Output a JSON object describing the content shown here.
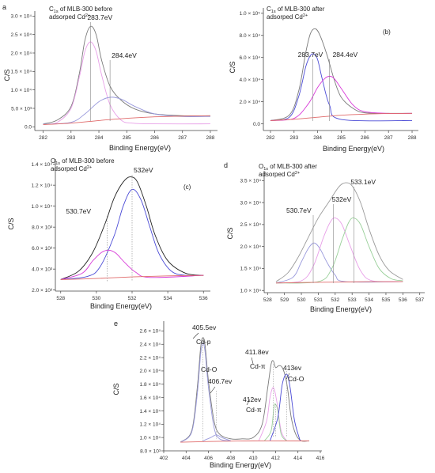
{
  "colors": {
    "envelope": "#7a7a7a",
    "background": "#e06a6a",
    "blue": "#4a4ad6",
    "magenta": "#d83ad8",
    "green": "#4aa84a",
    "violet": "#9a9adc",
    "pink": "#e8a0e8",
    "lightgreen": "#9ad09a",
    "black": "#222222"
  },
  "chart_data": [
    {
      "panel": "a",
      "type": "line",
      "title_lines": [
        "C1s of MLB-300 before",
        "adsorped Cd2+"
      ],
      "xlabel": "Binding Energy(eV)",
      "ylabel": "C/S",
      "xlim": [
        281.7,
        288.2
      ],
      "ylim": [
        -0.1,
        3.05
      ],
      "x_ticks": [
        "282",
        "283",
        "284",
        "285",
        "286",
        "287",
        "288"
      ],
      "x_tick_values": [
        282,
        283,
        284,
        285,
        286,
        287,
        288
      ],
      "y_ticks": [
        "0.0",
        "5.0 × 10³",
        "1.0 × 10⁴",
        "1.5 × 10⁴",
        "2.0 × 10⁴",
        "2.5 × 10⁴",
        "3.0 × 10⁴"
      ],
      "y_tick_values": [
        0,
        0.5,
        1.0,
        1.5,
        2.0,
        2.5,
        3.0
      ],
      "annotations": [
        {
          "text": "283.7eV",
          "x": 283.7
        },
        {
          "text": "284.4eV",
          "x": 284.4
        }
      ],
      "series": [
        {
          "role": "envelope",
          "color": "#7a7a7a",
          "x": [
            282.0,
            282.5,
            283.0,
            283.3,
            283.5,
            283.7,
            283.9,
            284.1,
            284.4,
            284.8,
            285.3,
            286.0,
            287.0,
            288.0
          ],
          "y": [
            0.08,
            0.18,
            0.55,
            1.45,
            2.35,
            2.72,
            2.5,
            1.8,
            1.1,
            0.72,
            0.48,
            0.35,
            0.3,
            0.3
          ]
        },
        {
          "role": "peak 283.7eV",
          "color": "#e8a0e8",
          "x": [
            282.0,
            282.5,
            283.0,
            283.3,
            283.5,
            283.7,
            283.9,
            284.1,
            284.4,
            284.8,
            285.2,
            286.0,
            288.0
          ],
          "y": [
            0.07,
            0.12,
            0.5,
            1.35,
            2.05,
            2.3,
            2.05,
            1.4,
            0.6,
            0.18,
            0.1,
            0.08,
            0.08
          ]
        },
        {
          "role": "peak 284.4eV",
          "color": "#9a9adc",
          "x": [
            282.0,
            283.0,
            283.5,
            284.0,
            284.4,
            284.8,
            285.3,
            286.0,
            287.0,
            288.0
          ],
          "y": [
            0.07,
            0.12,
            0.35,
            0.68,
            0.8,
            0.75,
            0.55,
            0.35,
            0.28,
            0.28
          ]
        },
        {
          "role": "background",
          "color": "#e06a6a",
          "x": [
            282.0,
            283.0,
            284.0,
            285.0,
            286.0,
            287.0,
            288.0
          ],
          "y": [
            0.06,
            0.1,
            0.17,
            0.23,
            0.27,
            0.29,
            0.3
          ]
        }
      ]
    },
    {
      "panel": "b",
      "type": "line",
      "title_lines": [
        "C1s of MLB-300 after",
        "adsorped Cd2+"
      ],
      "tag": "(b)",
      "xlabel": "Binding Energy(eV)",
      "ylabel": "C/S",
      "xlim": [
        281.7,
        288.2
      ],
      "ylim": [
        -0.6,
        10.2
      ],
      "x_ticks": [
        "282",
        "283",
        "284",
        "285",
        "286",
        "287",
        "288"
      ],
      "x_tick_values": [
        282,
        283,
        284,
        285,
        286,
        287,
        288
      ],
      "y_ticks": [
        "0.0",
        "2.0 × 10⁴",
        "4.0 × 10⁴",
        "6.0 × 10⁴",
        "8.0 × 10⁴",
        "1.0 × 10⁵"
      ],
      "y_tick_values": [
        0,
        2,
        4,
        6,
        8,
        10
      ],
      "annotations": [
        {
          "text": "283.7eV",
          "x": 283.8
        },
        {
          "text": "284.4eV",
          "x": 284.5
        }
      ],
      "series": [
        {
          "role": "envelope",
          "color": "#7a7a7a",
          "x": [
            282.0,
            282.8,
            283.2,
            283.5,
            283.7,
            283.9,
            284.1,
            284.4,
            284.7,
            285.0,
            285.5,
            286.0,
            287.0,
            288.0
          ],
          "y": [
            0.3,
            0.8,
            3.0,
            6.5,
            8.2,
            8.6,
            8.0,
            6.2,
            4.0,
            2.4,
            1.4,
            1.0,
            0.95,
            0.95
          ]
        },
        {
          "role": "peak 283.7eV",
          "color": "#4a4ad6",
          "x": [
            282.0,
            282.8,
            283.2,
            283.5,
            283.7,
            283.85,
            284.0,
            284.2,
            284.5,
            285.0,
            288.0
          ],
          "y": [
            0.3,
            0.6,
            2.5,
            5.2,
            6.2,
            6.3,
            5.8,
            4.0,
            1.7,
            0.4,
            0.3
          ]
        },
        {
          "role": "peak 284.4eV",
          "color": "#d83ad8",
          "x": [
            282.0,
            283.0,
            283.6,
            284.0,
            284.3,
            284.5,
            284.7,
            285.0,
            285.5,
            286.0,
            287.0,
            288.0
          ],
          "y": [
            0.3,
            0.5,
            1.8,
            3.3,
            4.1,
            4.3,
            4.1,
            3.2,
            1.7,
            1.1,
            0.95,
            0.95
          ]
        },
        {
          "role": "background",
          "color": "#e06a6a",
          "x": [
            282.0,
            283.0,
            284.0,
            285.0,
            286.0,
            287.0,
            288.0
          ],
          "y": [
            0.3,
            0.42,
            0.6,
            0.78,
            0.88,
            0.93,
            0.95
          ]
        }
      ]
    },
    {
      "panel": "c",
      "type": "line",
      "title_lines": [
        "O1s of MLB-300 before",
        "adsorped Cd2+"
      ],
      "tag": "(c)",
      "xlabel": "Binding Energy(eV)",
      "ylabel": "C/S",
      "xlim": [
        527.7,
        536.3
      ],
      "ylim": [
        1.9,
        14.2
      ],
      "x_ticks": [
        "528",
        "530",
        "532",
        "534",
        "536"
      ],
      "x_tick_values": [
        528,
        530,
        532,
        534,
        536
      ],
      "y_ticks": [
        "2.0 × 10³",
        "4.0 × 10³",
        "6.0 × 10³",
        "8.0 × 10³",
        "1.0 × 10⁴",
        "1.2 × 10⁴",
        "1.4 × 10⁴"
      ],
      "y_tick_values": [
        2,
        4,
        6,
        8,
        10,
        12,
        14
      ],
      "annotations": [
        {
          "text": "530.7eV",
          "x": 530.6
        },
        {
          "text": "532eV",
          "x": 532.0
        }
      ],
      "series": [
        {
          "role": "envelope",
          "color": "#222222",
          "x": [
            528.0,
            529.0,
            529.8,
            530.5,
            531.0,
            531.5,
            531.9,
            532.3,
            532.8,
            533.3,
            534.0,
            535.0,
            536.0
          ],
          "y": [
            3.0,
            3.8,
            5.6,
            8.4,
            10.8,
            12.3,
            12.8,
            12.3,
            10.0,
            7.2,
            4.8,
            3.6,
            3.4
          ]
        },
        {
          "role": "peak 532eV",
          "color": "#4a4ad6",
          "x": [
            528.0,
            529.5,
            530.2,
            531.0,
            531.5,
            532.0,
            532.5,
            533.0,
            533.5,
            534.2,
            535.0,
            536.0
          ],
          "y": [
            3.0,
            3.3,
            4.2,
            7.2,
            10.0,
            11.6,
            10.6,
            8.0,
            5.5,
            3.8,
            3.4,
            3.4
          ]
        },
        {
          "role": "peak 530.7eV",
          "color": "#d83ad8",
          "x": [
            528.0,
            529.2,
            529.8,
            530.3,
            530.7,
            531.1,
            531.6,
            532.2,
            533.0,
            536.0
          ],
          "y": [
            3.0,
            3.6,
            4.8,
            5.6,
            5.8,
            5.5,
            4.6,
            3.7,
            3.2,
            3.4
          ]
        },
        {
          "role": "background",
          "color": "#e06a6a",
          "x": [
            528.0,
            530.0,
            532.0,
            534.0,
            536.0
          ],
          "y": [
            3.0,
            3.1,
            3.25,
            3.35,
            3.4
          ]
        }
      ]
    },
    {
      "panel": "d",
      "type": "line",
      "title_lines": [
        "O1s of MLB-300 after",
        "adsorped Cd2+"
      ],
      "xlabel": "Binding Energy(eV)",
      "ylabel": "C/S",
      "xlim": [
        527.8,
        537.2
      ],
      "ylim": [
        0.95,
        3.65
      ],
      "x_ticks": [
        "528",
        "529",
        "530",
        "531",
        "532",
        "533",
        "534",
        "535",
        "536",
        "537"
      ],
      "x_tick_values": [
        528,
        529,
        530,
        531,
        532,
        533,
        534,
        535,
        536,
        537
      ],
      "y_ticks": [
        "1.0 × 10⁴",
        "1.5 × 10⁴",
        "2.0 × 10⁴",
        "2.5 × 10⁴",
        "3.0 × 10⁴",
        "3.5 × 10⁴"
      ],
      "y_tick_values": [
        1.0,
        1.5,
        2.0,
        2.5,
        3.0,
        3.5
      ],
      "annotations": [
        {
          "text": "530.7eV",
          "x": 530.7
        },
        {
          "text": "532eV",
          "x": 531.9
        },
        {
          "text": "533.1eV",
          "x": 533.1
        }
      ],
      "series": [
        {
          "role": "envelope",
          "color": "#9a9a9a",
          "x": [
            528.5,
            529.2,
            529.8,
            530.4,
            531.0,
            531.6,
            532.2,
            532.6,
            533.0,
            533.5,
            534.0,
            534.6,
            535.2,
            536.0
          ],
          "y": [
            1.2,
            1.4,
            1.75,
            2.2,
            2.65,
            3.0,
            3.35,
            3.45,
            3.38,
            3.0,
            2.4,
            1.8,
            1.45,
            1.25
          ]
        },
        {
          "role": "peak 530.7eV",
          "color": "#9a9adc",
          "x": [
            528.5,
            529.5,
            530.0,
            530.4,
            530.75,
            531.1,
            531.5,
            532.0,
            532.6,
            536.0
          ],
          "y": [
            1.17,
            1.3,
            1.65,
            1.95,
            2.08,
            1.95,
            1.65,
            1.35,
            1.2,
            1.2
          ]
        },
        {
          "role": "peak 532eV",
          "color": "#e8a0e8",
          "x": [
            528.5,
            530.0,
            530.7,
            531.3,
            531.7,
            532.0,
            532.4,
            532.9,
            533.5,
            534.2,
            536.0
          ],
          "y": [
            1.17,
            1.22,
            1.55,
            2.2,
            2.55,
            2.65,
            2.5,
            2.0,
            1.45,
            1.22,
            1.2
          ]
        },
        {
          "role": "peak 533.1eV",
          "color": "#9ad09a",
          "x": [
            528.5,
            531.0,
            531.8,
            532.4,
            532.8,
            533.1,
            533.5,
            534.0,
            534.6,
            535.3,
            536.0
          ],
          "y": [
            1.17,
            1.2,
            1.5,
            2.15,
            2.55,
            2.65,
            2.5,
            2.0,
            1.5,
            1.27,
            1.22
          ]
        },
        {
          "role": "background",
          "color": "#e06a6a",
          "x": [
            528.5,
            530.0,
            532.0,
            534.0,
            536.0
          ],
          "y": [
            1.17,
            1.18,
            1.19,
            1.2,
            1.2
          ]
        }
      ]
    },
    {
      "panel": "e",
      "type": "line",
      "xlabel": "Binding Energy(eV)",
      "ylabel": "C/S",
      "xlim": [
        402.0,
        416.0
      ],
      "ylim": [
        0.8,
        2.7
      ],
      "x_ticks": [
        "402",
        "404",
        "406",
        "408",
        "410",
        "412",
        "414",
        "416"
      ],
      "x_tick_values": [
        402,
        404,
        406,
        408,
        410,
        412,
        414,
        416
      ],
      "y_ticks": [
        "8.0 × 10³",
        "1.0 × 10⁴",
        "1.2 × 10⁴",
        "1.4 × 10⁴",
        "1.6 × 10⁴",
        "1.8 × 10⁴",
        "2.0 × 10⁴",
        "2.2 × 10⁴",
        "2.4 × 10⁴",
        "2.6 × 10⁴"
      ],
      "y_tick_values": [
        0.8,
        1.0,
        1.2,
        1.4,
        1.6,
        1.8,
        2.0,
        2.2,
        2.4,
        2.6
      ],
      "annotations": [
        {
          "text": "405.5ev",
          "x": 405.5
        },
        {
          "text": "Cd-p"
        },
        {
          "text": "Cd-O"
        },
        {
          "text": "406.7ev",
          "x": 406.7
        },
        {
          "text": "411.8ev",
          "x": 411.8
        },
        {
          "text": "Cd-π"
        },
        {
          "text": "413ev",
          "x": 413.0
        },
        {
          "text": "Cd-O"
        },
        {
          "text": "412ev",
          "x": 412.0
        },
        {
          "text": "Cd-π"
        }
      ],
      "series": [
        {
          "role": "envelope",
          "color": "#7a7a7a",
          "x": [
            403.5,
            404.5,
            405.0,
            405.3,
            405.5,
            405.7,
            406.0,
            406.5,
            407.0,
            408.0,
            409.0,
            410.0,
            410.8,
            411.3,
            411.6,
            411.8,
            412.0,
            412.3,
            412.6,
            412.9,
            413.1,
            413.4,
            413.8,
            414.3,
            415.0
          ],
          "y": [
            0.93,
            1.1,
            1.75,
            2.35,
            2.5,
            2.38,
            1.85,
            1.25,
            1.05,
            0.98,
            0.98,
            1.0,
            1.2,
            1.75,
            2.1,
            2.15,
            2.05,
            2.08,
            2.05,
            1.9,
            1.7,
            1.3,
            1.05,
            0.95,
            0.95
          ]
        },
        {
          "role": "Cd-p 405.5ev",
          "color": "#9a9adc",
          "x": [
            403.5,
            404.5,
            405.0,
            405.3,
            405.5,
            405.7,
            406.0,
            406.5,
            407.0,
            408.0
          ],
          "y": [
            0.93,
            1.08,
            1.65,
            2.25,
            2.42,
            2.28,
            1.75,
            1.15,
            0.98,
            0.95
          ]
        },
        {
          "role": "Cd-O 406.7ev",
          "color": "#9a9adc",
          "x": [
            405.5,
            406.2,
            406.7,
            407.2,
            408.0
          ],
          "y": [
            0.95,
            1.0,
            1.04,
            1.0,
            0.95
          ]
        },
        {
          "role": "Cd-π 411.8ev",
          "color": "#e8a0e8",
          "x": [
            410.5,
            411.2,
            411.5,
            411.8,
            412.1,
            412.5,
            413.0
          ],
          "y": [
            0.95,
            1.25,
            1.6,
            1.75,
            1.55,
            1.1,
            0.95
          ]
        },
        {
          "role": "Cd-π 412ev",
          "color": "#9ad09a",
          "x": [
            411.0,
            411.6,
            411.85,
            412.0,
            412.2,
            412.5,
            413.0
          ],
          "y": [
            0.95,
            1.1,
            1.45,
            1.5,
            1.4,
            1.05,
            0.95
          ]
        },
        {
          "role": "Cd-O 413ev",
          "color": "#4a4ad6",
          "x": [
            411.5,
            412.2,
            412.6,
            413.0,
            413.3,
            413.7,
            414.2
          ],
          "y": [
            0.95,
            1.3,
            1.8,
            1.95,
            1.75,
            1.25,
            0.95
          ]
        },
        {
          "role": "background",
          "color": "#e06a6a",
          "x": [
            403.5,
            406.0,
            410.0,
            414.0,
            415.0
          ],
          "y": [
            0.93,
            0.94,
            0.95,
            0.95,
            0.95
          ]
        }
      ]
    }
  ]
}
